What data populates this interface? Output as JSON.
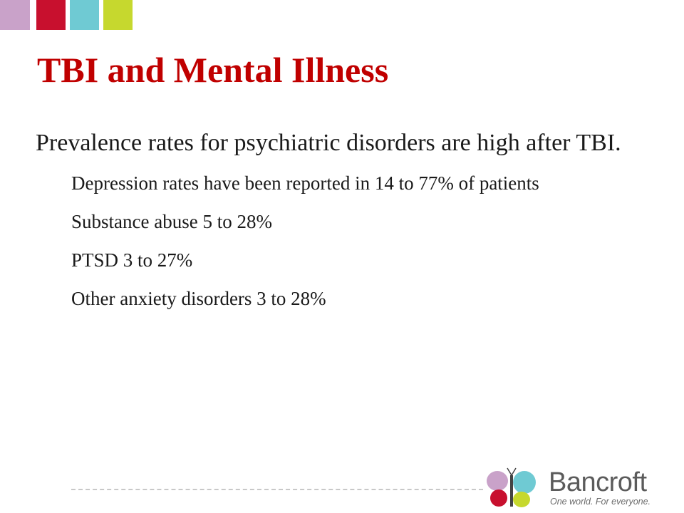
{
  "colors": {
    "title": "#c00000",
    "tabs": [
      "#c9a2c9",
      "#c8102e",
      "#6fcad3",
      "#c6d82e"
    ]
  },
  "slide": {
    "title": "TBI and Mental Illness",
    "bullets": [
      {
        "level": 1,
        "text": "Prevalence rates for psychiatric disorders are high after TBI."
      },
      {
        "level": 2,
        "text": "Depression rates have been reported in 14 to 77% of patients"
      },
      {
        "level": 2,
        "text": "Substance abuse 5 to 28%"
      },
      {
        "level": 2,
        "text": "PTSD 3 to 27%"
      },
      {
        "level": 2,
        "text": "Other anxiety disorders 3 to 28%"
      }
    ]
  },
  "logo": {
    "name": "Bancroft",
    "tagline": "One world. For everyone."
  }
}
